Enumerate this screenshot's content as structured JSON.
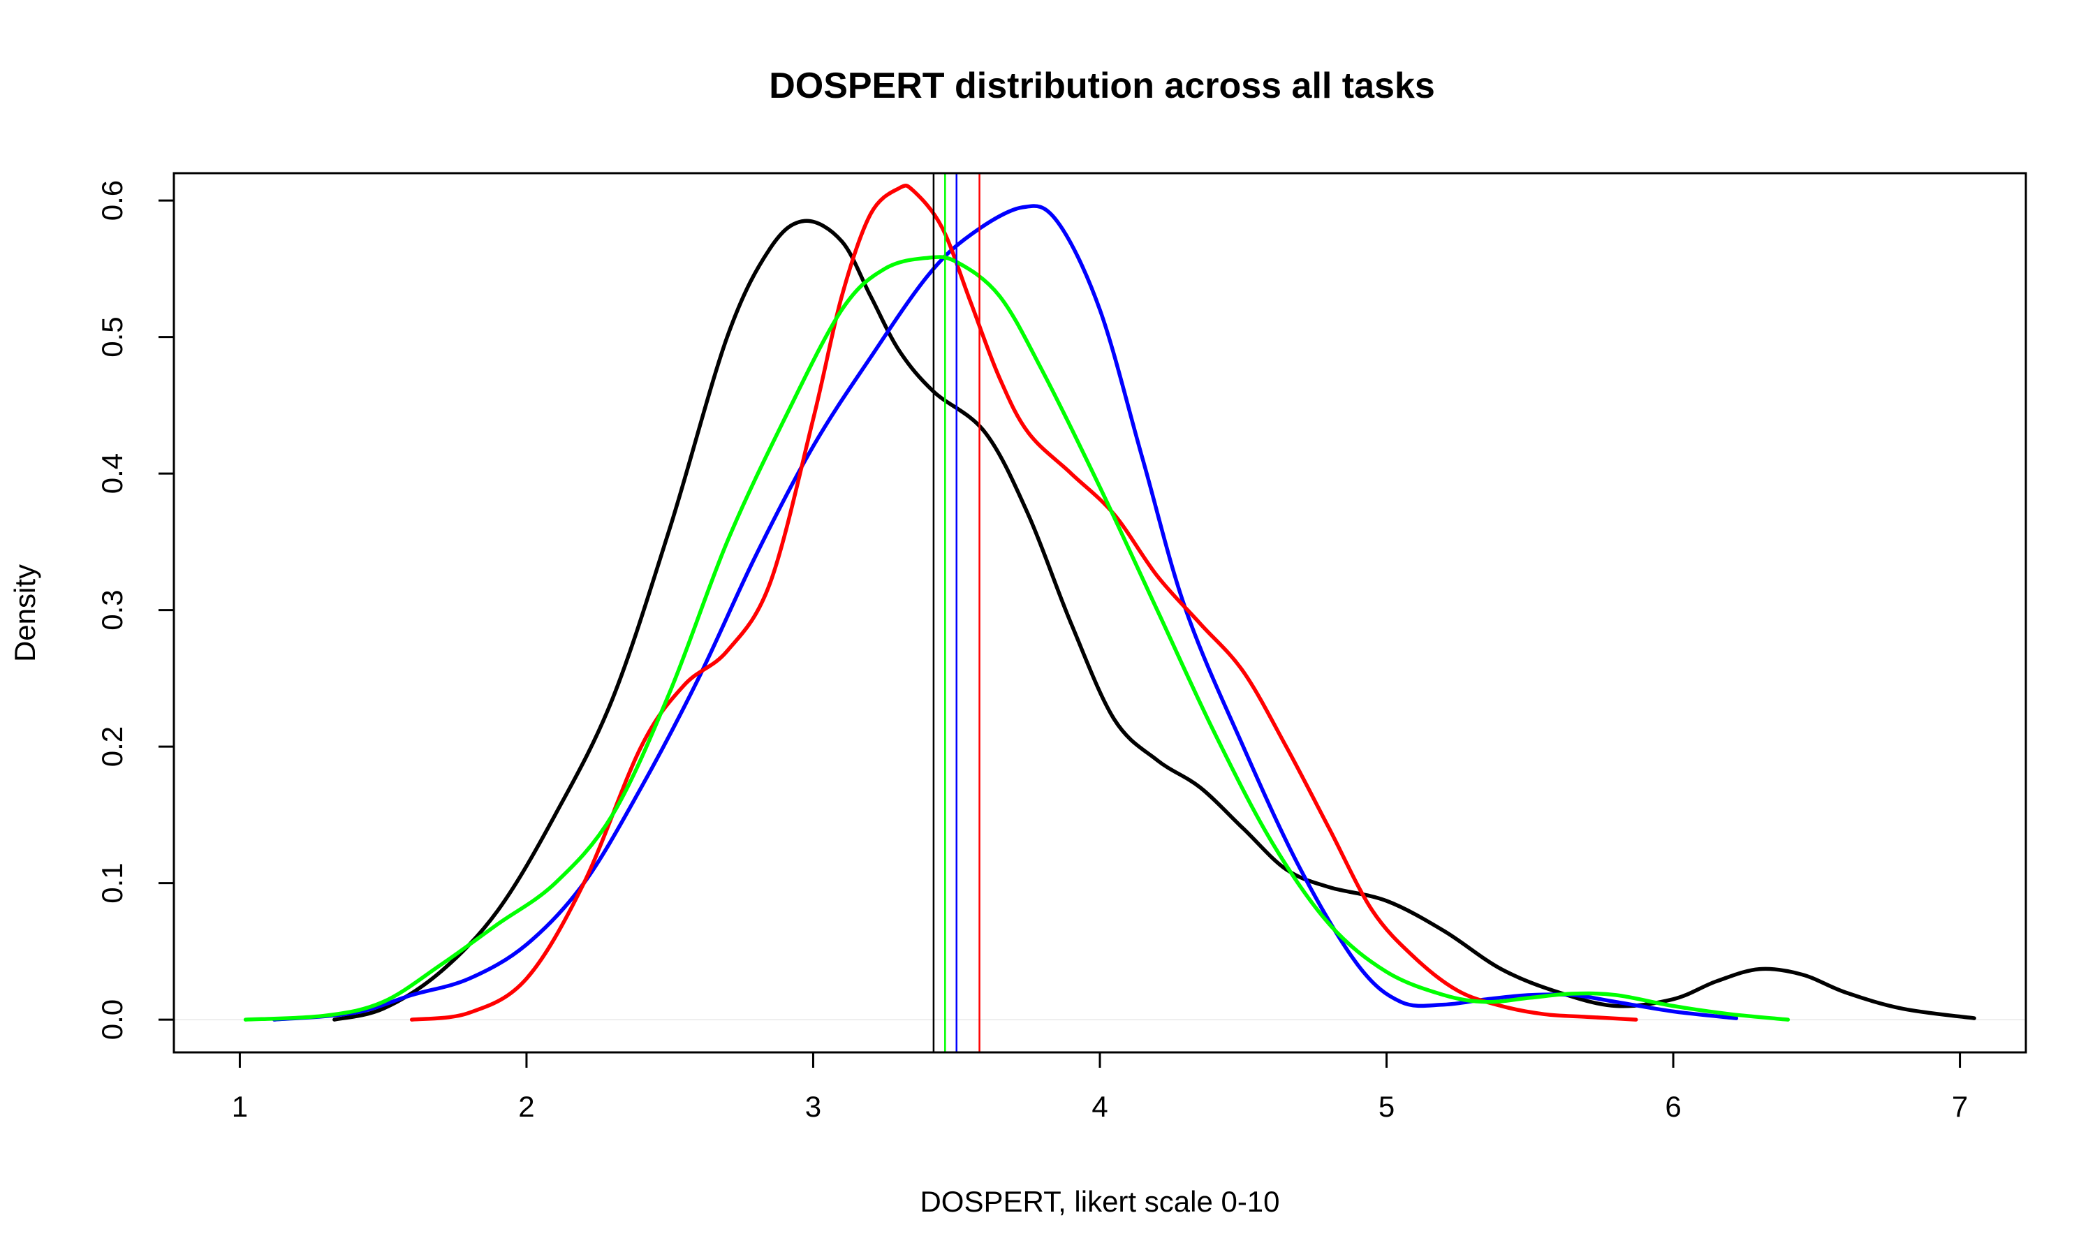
{
  "chart_data": {
    "type": "line",
    "title": "DOSPERT distribution across all tasks",
    "xlabel": "DOSPERT, likert scale 0-10",
    "ylabel": "Density",
    "xlim": [
      0.77,
      7.23
    ],
    "ylim": [
      -0.024,
      0.62
    ],
    "xticks": [
      1,
      2,
      3,
      4,
      5,
      6,
      7
    ],
    "xtick_labels": [
      "1",
      "2",
      "3",
      "4",
      "5",
      "6",
      "7"
    ],
    "yticks": [
      0.0,
      0.1,
      0.2,
      0.3,
      0.4,
      0.5,
      0.6
    ],
    "ytick_labels": [
      "0.0",
      "0.1",
      "0.2",
      "0.3",
      "0.4",
      "0.5",
      "0.6"
    ],
    "grid": false,
    "legend": "none",
    "series": [
      {
        "color": "#000000",
        "x": [
          1.33,
          1.5,
          1.7,
          1.9,
          2.1,
          2.3,
          2.5,
          2.7,
          2.85,
          2.97,
          3.1,
          3.2,
          3.3,
          3.42,
          3.6,
          3.75,
          3.9,
          4.05,
          4.2,
          4.35,
          4.5,
          4.65,
          4.8,
          5.0,
          5.2,
          5.4,
          5.6,
          5.8,
          6.0,
          6.15,
          6.3,
          6.45,
          6.6,
          6.8,
          7.05
        ],
        "y": [
          0.0,
          0.008,
          0.035,
          0.08,
          0.15,
          0.235,
          0.36,
          0.5,
          0.565,
          0.585,
          0.57,
          0.53,
          0.49,
          0.46,
          0.43,
          0.37,
          0.29,
          0.22,
          0.19,
          0.17,
          0.14,
          0.11,
          0.097,
          0.087,
          0.065,
          0.037,
          0.02,
          0.01,
          0.015,
          0.028,
          0.037,
          0.033,
          0.02,
          0.008,
          0.001
        ]
      },
      {
        "color": "#0000ff",
        "x": [
          1.12,
          1.4,
          1.6,
          1.8,
          2.0,
          2.2,
          2.4,
          2.6,
          2.8,
          3.0,
          3.2,
          3.4,
          3.55,
          3.73,
          3.85,
          4.0,
          4.15,
          4.3,
          4.5,
          4.7,
          4.9,
          5.05,
          5.2,
          5.35,
          5.5,
          5.65,
          5.8,
          6.0,
          6.22
        ],
        "y": [
          0.0,
          0.005,
          0.018,
          0.03,
          0.055,
          0.1,
          0.17,
          0.25,
          0.34,
          0.42,
          0.485,
          0.545,
          0.575,
          0.595,
          0.585,
          0.52,
          0.41,
          0.3,
          0.2,
          0.11,
          0.04,
          0.013,
          0.011,
          0.015,
          0.018,
          0.018,
          0.013,
          0.006,
          0.001
        ]
      },
      {
        "color": "#ff0000",
        "x": [
          1.6,
          1.8,
          2.0,
          2.2,
          2.4,
          2.55,
          2.7,
          2.85,
          3.0,
          3.1,
          3.2,
          3.3,
          3.35,
          3.45,
          3.55,
          3.65,
          3.75,
          3.9,
          4.05,
          4.2,
          4.35,
          4.5,
          4.65,
          4.8,
          4.95,
          5.1,
          5.25,
          5.4,
          5.55,
          5.7,
          5.87
        ],
        "y": [
          0.0,
          0.005,
          0.03,
          0.1,
          0.2,
          0.245,
          0.27,
          0.32,
          0.44,
          0.53,
          0.59,
          0.609,
          0.607,
          0.58,
          0.525,
          0.47,
          0.43,
          0.4,
          0.37,
          0.325,
          0.29,
          0.255,
          0.2,
          0.14,
          0.08,
          0.045,
          0.021,
          0.01,
          0.004,
          0.002,
          0.0
        ]
      },
      {
        "color": "#00ff00",
        "x": [
          1.02,
          1.3,
          1.5,
          1.7,
          1.9,
          2.1,
          2.3,
          2.5,
          2.7,
          2.9,
          3.1,
          3.25,
          3.4,
          3.5,
          3.65,
          3.8,
          4.0,
          4.2,
          4.4,
          4.6,
          4.8,
          5.0,
          5.2,
          5.35,
          5.5,
          5.65,
          5.8,
          6.0,
          6.2,
          6.4
        ],
        "y": [
          0.0,
          0.003,
          0.013,
          0.04,
          0.07,
          0.1,
          0.15,
          0.24,
          0.35,
          0.44,
          0.52,
          0.55,
          0.558,
          0.555,
          0.53,
          0.475,
          0.39,
          0.3,
          0.21,
          0.13,
          0.07,
          0.035,
          0.018,
          0.013,
          0.016,
          0.019,
          0.018,
          0.01,
          0.004,
          0.0
        ]
      }
    ],
    "vertical_lines": [
      {
        "color": "#000000",
        "x": 3.42
      },
      {
        "color": "#00ff00",
        "x": 3.46
      },
      {
        "color": "#0000ff",
        "x": 3.5
      },
      {
        "color": "#ff0000",
        "x": 3.58
      }
    ]
  }
}
